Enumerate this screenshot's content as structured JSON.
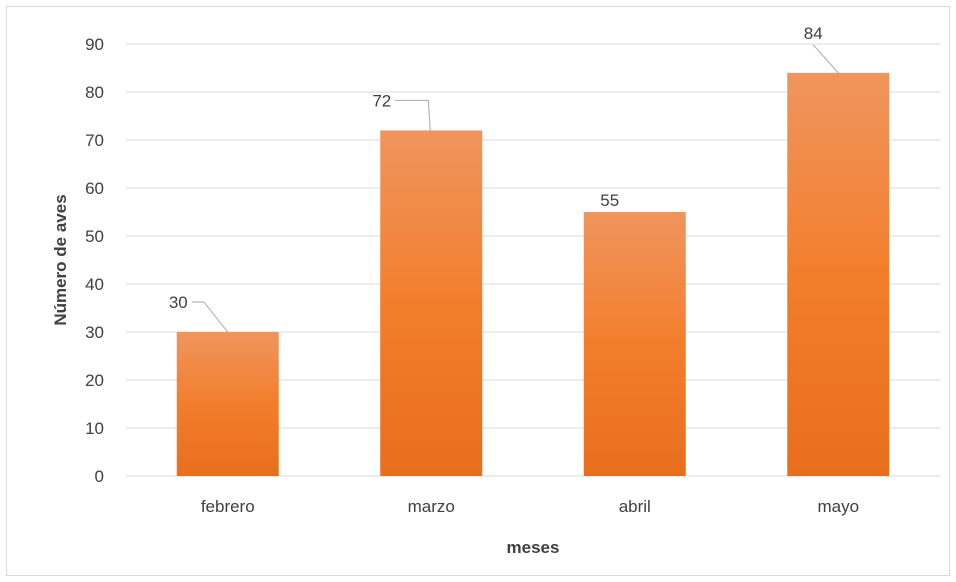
{
  "chart_data": {
    "type": "bar",
    "categories": [
      "febrero",
      "marzo",
      "abril",
      "mayo"
    ],
    "values": [
      30,
      72,
      55,
      84
    ],
    "xlabel": "meses",
    "ylabel": "Número de aves",
    "ylim": [
      0,
      90
    ],
    "yticks": [
      0,
      10,
      20,
      30,
      40,
      50,
      60,
      70,
      80,
      90
    ],
    "grid": true,
    "legend": "none",
    "data_labels": true
  },
  "colors": {
    "bar_top": "#f0955e",
    "bar_mid": "#f27e2c",
    "bar_bottom": "#e86e1c",
    "gridline": "#d9d9d9",
    "text": "#404040",
    "leader_line": "#a6a6a6"
  }
}
